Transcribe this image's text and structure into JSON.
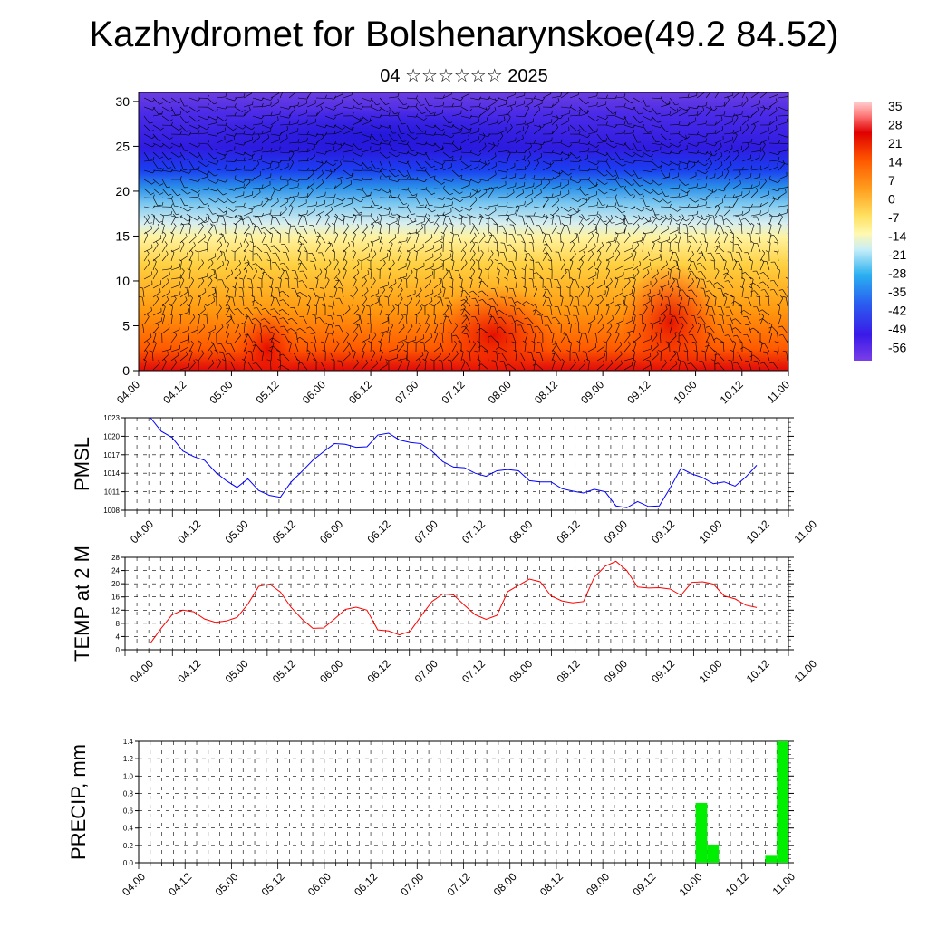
{
  "title": "Kazhydromet for Bolshenarynskoe(49.2 84.52)",
  "subtitle": "04 ☆☆☆☆☆☆ 2025",
  "colors": {
    "pmsl_line": "#0000ff",
    "temp_line": "#ff0000",
    "precip_bar": "#00ee00",
    "grid": "#000000"
  },
  "chart_data": [
    {
      "type": "heatmap",
      "name_hint": "cross-section",
      "x_tick_labels": [
        "04.00",
        "04.12",
        "05.00",
        "05.12",
        "06.00",
        "06.12",
        "07.00",
        "07.12",
        "08.00",
        "08.12",
        "09.00",
        "09.12",
        "10.00",
        "10.12",
        "11.00"
      ],
      "y_ticks": [
        0,
        5,
        10,
        15,
        20,
        25,
        30
      ],
      "ylim": [
        0,
        31
      ],
      "wind_barbs": true,
      "colorbar": {
        "labels": [
          "35",
          "28",
          "21",
          "14",
          "7",
          "0",
          "-7",
          "-14",
          "-21",
          "-28",
          "-35",
          "-42",
          "-49",
          "-56"
        ],
        "range": [
          -60,
          38
        ]
      },
      "xlabel": "",
      "ylabel": ""
    },
    {
      "type": "line",
      "ylabel": "PMSL",
      "x_tick_labels": [
        "04.00",
        "04.12",
        "05.00",
        "05.12",
        "06.00",
        "06.12",
        "07.00",
        "07.12",
        "08.00",
        "08.12",
        "09.00",
        "09.12",
        "10.00",
        "10.12",
        "11.00"
      ],
      "y_ticks": [
        1008,
        1011,
        1014,
        1017,
        1020,
        1023
      ],
      "ylim": [
        1008,
        1023
      ],
      "xlim": [
        0,
        168
      ],
      "x_hours": [
        0,
        3,
        6,
        9,
        12,
        15,
        18,
        21,
        24,
        27,
        30,
        33,
        36,
        39,
        42,
        45,
        48,
        51,
        54,
        57,
        60,
        63,
        66,
        69,
        72,
        75,
        78,
        81,
        84,
        87,
        90,
        93,
        96,
        99,
        102,
        105,
        108,
        111,
        114,
        117,
        120,
        123,
        126,
        129,
        132,
        135,
        138,
        141,
        144,
        147,
        150,
        153,
        156,
        159,
        162,
        165
      ],
      "values": [
        1023,
        1020.8,
        1019.8,
        1017.6,
        1016.7,
        1016.1,
        1014.2,
        1012.8,
        1011.7,
        1013.1,
        1011.2,
        1010.4,
        1010.1,
        1012.6,
        1014.3,
        1016.1,
        1017.5,
        1018.8,
        1018.7,
        1018.2,
        1018.3,
        1020.2,
        1020.5,
        1019.4,
        1019.0,
        1018.8,
        1017.6,
        1015.9,
        1015.0,
        1014.9,
        1014.0,
        1013.5,
        1014.4,
        1014.6,
        1014.4,
        1012.8,
        1012.6,
        1012.6,
        1011.5,
        1011.1,
        1010.8,
        1011.4,
        1011.0,
        1008.7,
        1008.4,
        1009.4,
        1008.6,
        1008.7,
        1011.6,
        1014.8,
        1013.9,
        1013.3,
        1012.3,
        1012.6,
        1011.9,
        1013.4
      ],
      "extra_x": [
        168
      ],
      "extra_values": [
        1015.3
      ]
    },
    {
      "type": "line",
      "ylabel": "TEMP at 2 M",
      "x_tick_labels": [
        "04.00",
        "04.12",
        "05.00",
        "05.12",
        "06.00",
        "06.12",
        "07.00",
        "07.12",
        "08.00",
        "08.12",
        "09.00",
        "09.12",
        "10.00",
        "10.12",
        "11.00"
      ],
      "y_ticks": [
        0,
        4,
        8,
        12,
        16,
        20,
        24,
        28
      ],
      "ylim": [
        0,
        28
      ],
      "xlim": [
        0,
        168
      ],
      "x_hours": [
        0,
        3,
        6,
        9,
        12,
        15,
        18,
        21,
        24,
        27,
        30,
        33,
        36,
        39,
        42,
        45,
        48,
        51,
        54,
        57,
        60,
        63,
        66,
        69,
        72,
        75,
        78,
        81,
        84,
        87,
        90,
        93,
        96,
        99,
        102,
        105,
        108,
        111,
        114,
        117,
        120,
        123,
        126,
        129,
        132,
        135,
        138,
        141,
        144,
        147,
        150,
        153,
        156,
        159,
        162,
        165,
        168
      ],
      "values": [
        2.0,
        6.5,
        10.6,
        12.0,
        11.5,
        9.3,
        8.3,
        8.7,
        9.8,
        13.8,
        19.2,
        19.9,
        17.5,
        12.8,
        9.3,
        6.5,
        6.6,
        9.3,
        12.2,
        12.9,
        12.0,
        6.0,
        5.7,
        4.5,
        5.6,
        10.2,
        14.6,
        16.9,
        16.6,
        13.5,
        10.6,
        9.2,
        10.4,
        17.6,
        19.5,
        21.4,
        20.6,
        16.3,
        14.8,
        14.2,
        14.6,
        22.0,
        25.3,
        26.8,
        24.0,
        19.0,
        18.7,
        18.8,
        18.4,
        16.5,
        20.4,
        20.6,
        19.9,
        16.3,
        15.4,
        13.5,
        12.8
      ]
    },
    {
      "type": "bar",
      "ylabel": "PRECIP, mm",
      "x_tick_labels": [
        "04.00",
        "04.12",
        "05.00",
        "05.12",
        "06.00",
        "06.12",
        "07.00",
        "07.12",
        "08.00",
        "08.12",
        "09.00",
        "09.12",
        "10.00",
        "10.12",
        "11.00"
      ],
      "y_ticks": [
        "0.0",
        "0.2",
        "0.4",
        "0.6",
        "0.8",
        "1.0",
        "1.2",
        "1.4"
      ],
      "ylim": [
        0,
        1.4
      ],
      "xlim": [
        0,
        168
      ],
      "bars": [
        {
          "x0": 144,
          "x1": 147,
          "value": 0.69
        },
        {
          "x0": 147,
          "x1": 150,
          "value": 0.21
        },
        {
          "x0": 162,
          "x1": 165,
          "value": 0.08
        },
        {
          "x0": 165,
          "x1": 168,
          "value": 1.4
        }
      ]
    }
  ]
}
